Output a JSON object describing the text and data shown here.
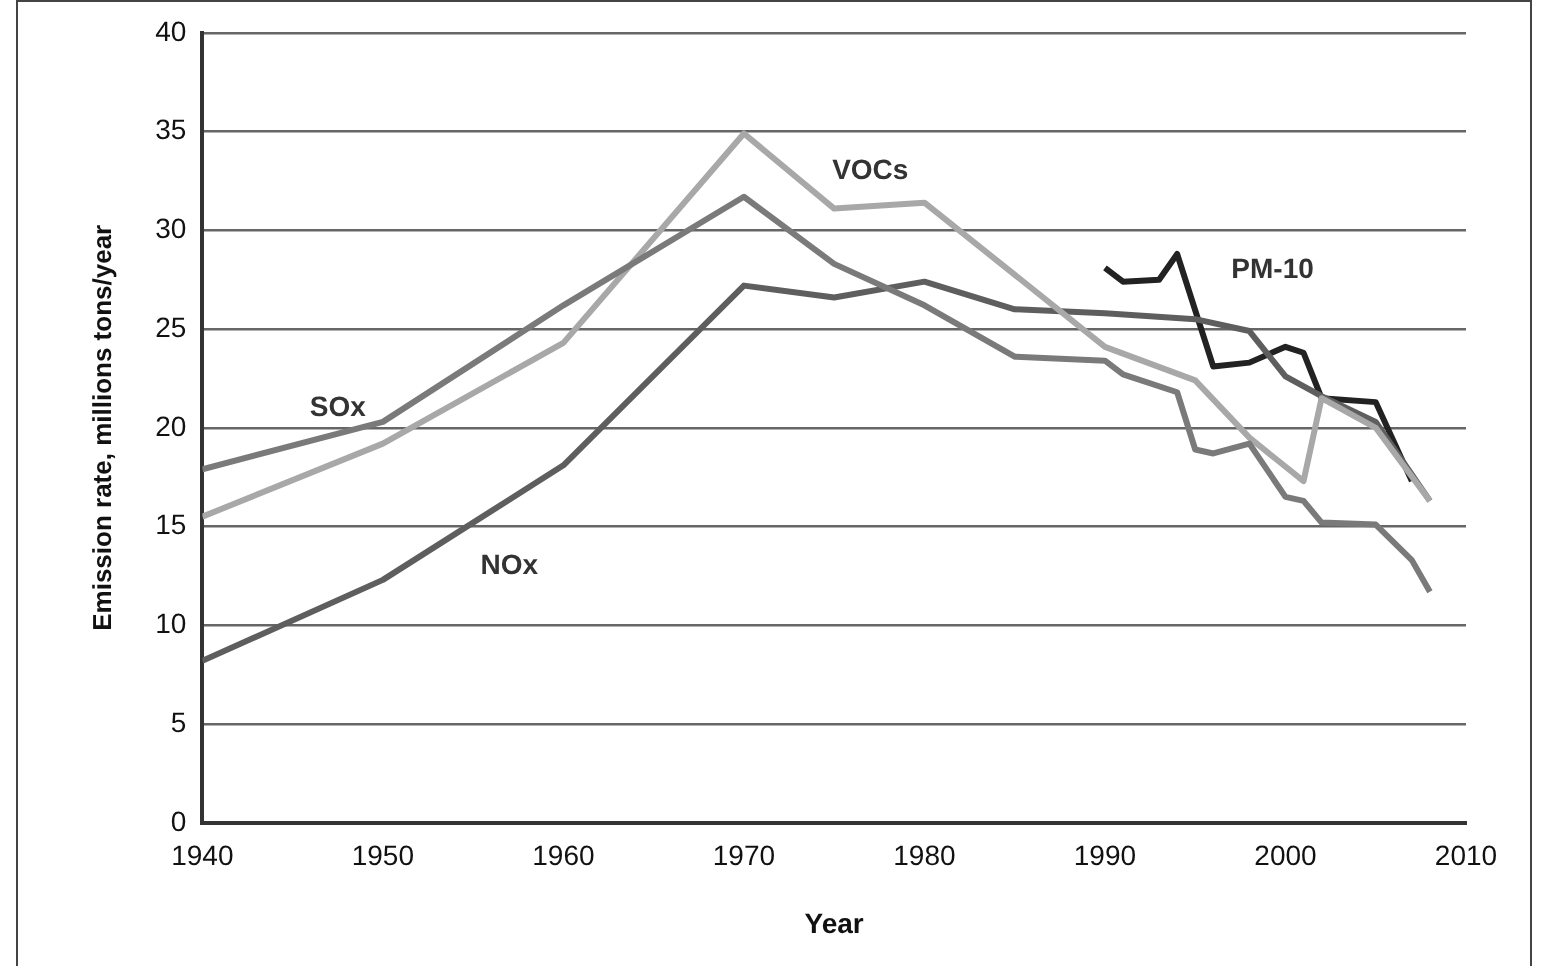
{
  "chart_data": {
    "type": "line",
    "xlabel": "Year",
    "ylabel": "Emission rate, millions tons/year",
    "xlim": [
      1940,
      2010
    ],
    "xticks": [
      1940,
      1950,
      1960,
      1970,
      1980,
      1990,
      2000,
      2010
    ],
    "ylim": [
      0,
      40
    ],
    "yticks": [
      0,
      5,
      10,
      15,
      20,
      25,
      30,
      35,
      40
    ],
    "grid": "y",
    "legend": false,
    "marker": "none",
    "line_style": "solid",
    "series": [
      {
        "name": "SOx",
        "color": "#7a7a7a",
        "x": [
          1940,
          1950,
          1960,
          1970,
          1975,
          1980,
          1985,
          1990,
          1991,
          1994,
          1995,
          1996,
          1998,
          2000,
          2001,
          2002,
          2005,
          2007,
          2008
        ],
        "values": [
          17.9,
          20.3,
          26.2,
          31.7,
          28.3,
          26.2,
          23.6,
          23.4,
          22.7,
          21.8,
          18.9,
          18.7,
          19.2,
          16.5,
          16.3,
          15.2,
          15.1,
          13.3,
          11.7
        ]
      },
      {
        "name": "VOCs",
        "color": "#a8a8a8",
        "x": [
          1940,
          1950,
          1960,
          1970,
          1975,
          1980,
          1990,
          1995,
          1998,
          2001,
          2002,
          2005,
          2008
        ],
        "values": [
          15.5,
          19.2,
          24.3,
          34.9,
          31.1,
          31.4,
          24.1,
          22.4,
          19.5,
          17.3,
          21.5,
          20,
          16.3
        ]
      },
      {
        "name": "NOx",
        "color": "#5e5e5e",
        "x": [
          1940,
          1950,
          1960,
          1970,
          1975,
          1980,
          1985,
          1990,
          1995,
          1998,
          2000,
          2002,
          2005,
          2008
        ],
        "values": [
          8.2,
          12.3,
          18.1,
          27.2,
          26.6,
          27.4,
          26,
          25.8,
          25.5,
          24.9,
          22.6,
          21.6,
          20.3,
          16.3
        ]
      },
      {
        "name": "PM-10",
        "color": "#222222",
        "x": [
          1990,
          1991,
          1993,
          1994,
          1996,
          1998,
          2000,
          2001,
          2002,
          2005,
          2007
        ],
        "values": [
          28.1,
          27.4,
          27.5,
          28.8,
          23.1,
          23.3,
          24.1,
          23.8,
          21.5,
          21.3,
          17.3
        ]
      }
    ]
  }
}
